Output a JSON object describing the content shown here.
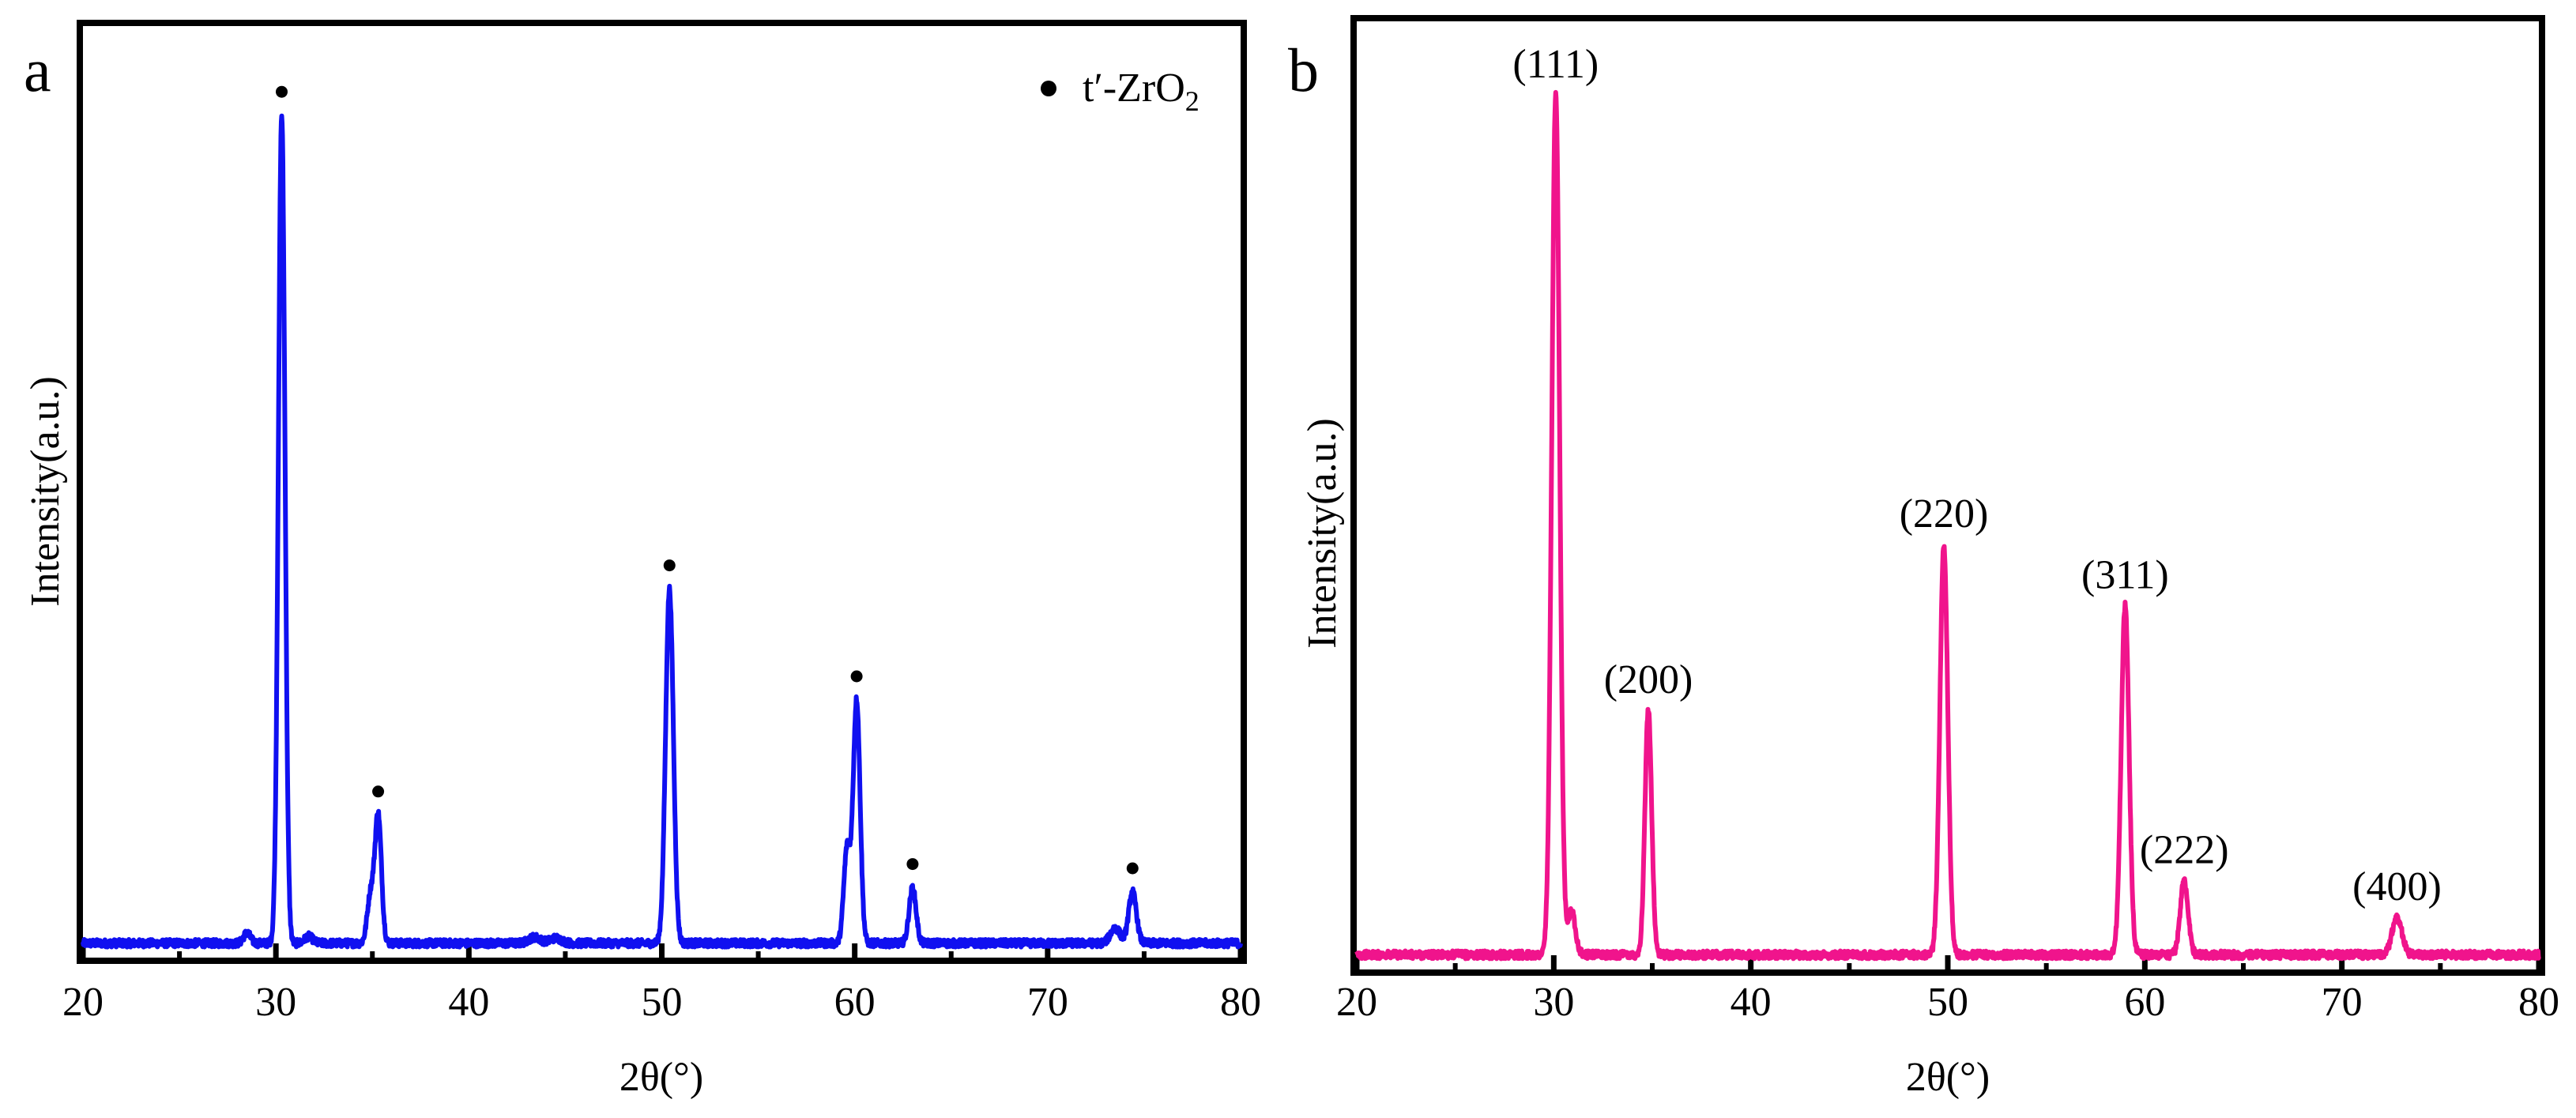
{
  "chart_data": [
    {
      "type": "line",
      "panel_label": "a",
      "xlabel": "2θ(°)",
      "ylabel": "Intensity(a.u.)",
      "xlim": [
        20,
        80
      ],
      "ylim": [
        0,
        100
      ],
      "xticks": [
        20,
        30,
        40,
        50,
        60,
        70,
        80
      ],
      "series_color": "#1010f0",
      "baseline": 1.5,
      "peaks": [
        {
          "x": 28.5,
          "h": 1.2,
          "w": 0.18
        },
        {
          "x": 30.3,
          "h": 97,
          "w": 0.17
        },
        {
          "x": 31.7,
          "h": 0.8,
          "w": 0.2
        },
        {
          "x": 34.9,
          "h": 5.5,
          "w": 0.17
        },
        {
          "x": 35.3,
          "h": 15,
          "w": 0.17
        },
        {
          "x": 43.4,
          "h": 0.7,
          "w": 0.3
        },
        {
          "x": 44.5,
          "h": 0.6,
          "w": 0.3
        },
        {
          "x": 50.4,
          "h": 41.5,
          "w": 0.2
        },
        {
          "x": 59.6,
          "h": 11,
          "w": 0.17
        },
        {
          "x": 60.1,
          "h": 28.5,
          "w": 0.18
        },
        {
          "x": 63.0,
          "h": 6.5,
          "w": 0.18
        },
        {
          "x": 73.5,
          "h": 1.8,
          "w": 0.25
        },
        {
          "x": 74.4,
          "h": 6.0,
          "w": 0.2
        }
      ],
      "markers": [
        30.3,
        35.3,
        50.4,
        60.1,
        63.0,
        74.4
      ],
      "legend": {
        "symbol": "●",
        "label_main": "t′-ZrO",
        "label_sub": "2",
        "position": "top-right"
      }
    },
    {
      "type": "line",
      "panel_label": "b",
      "xlabel": "2θ(°)",
      "ylabel": "Intensity(a.u.)",
      "xlim": [
        20,
        80
      ],
      "ylim": [
        0,
        100
      ],
      "xticks": [
        20,
        30,
        40,
        50,
        60,
        70,
        80
      ],
      "series_color": "#f0148c",
      "baseline": 1.5,
      "peaks": [
        {
          "x": 30.1,
          "h": 98.5,
          "w": 0.2
        },
        {
          "x": 30.9,
          "h": 5,
          "w": 0.2
        },
        {
          "x": 34.8,
          "h": 28,
          "w": 0.17
        },
        {
          "x": 49.8,
          "h": 47,
          "w": 0.2
        },
        {
          "x": 59.0,
          "h": 40,
          "w": 0.2
        },
        {
          "x": 62.0,
          "h": 8.5,
          "w": 0.2
        },
        {
          "x": 72.8,
          "h": 4.3,
          "w": 0.25
        }
      ],
      "annotations": [
        {
          "x": 30.1,
          "h": 98.5,
          "text": "(111)"
        },
        {
          "x": 34.8,
          "h": 28,
          "text": "(200)"
        },
        {
          "x": 49.8,
          "h": 47,
          "text": "(220)"
        },
        {
          "x": 59.0,
          "h": 40,
          "text": "(311)"
        },
        {
          "x": 62.0,
          "h": 8.5,
          "text": "(222)"
        },
        {
          "x": 72.8,
          "h": 4.3,
          "text": "(400)"
        }
      ]
    }
  ]
}
